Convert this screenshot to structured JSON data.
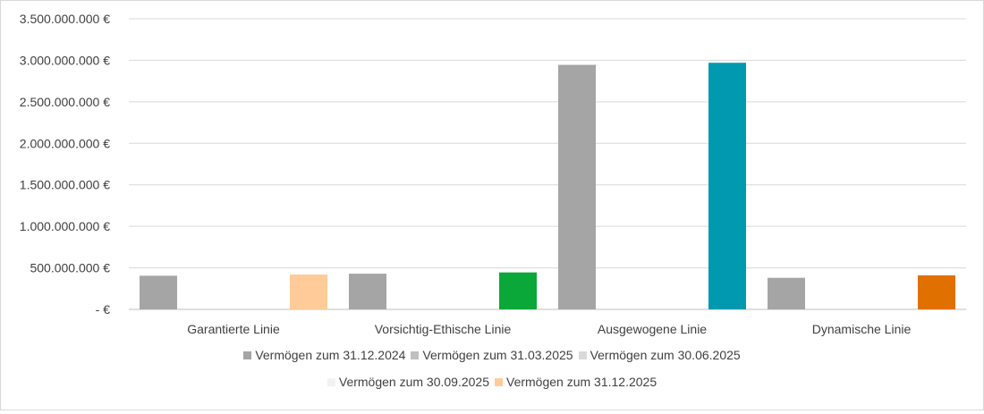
{
  "chart_data": {
    "type": "bar",
    "categories": [
      "Garantierte Linie",
      "Vorsichtig-Ethische Linie",
      "Ausgewogene Linie",
      "Dynamische Linie"
    ],
    "ylim": [
      0,
      3500000000
    ],
    "y_ticks": [
      0,
      500000000,
      1000000000,
      1500000000,
      2000000000,
      2500000000,
      3000000000,
      3500000000
    ],
    "y_tick_labels": [
      "-  €",
      "500.000.000 €",
      "1.000.000.000 €",
      "1.500.000.000 €",
      "2.000.000.000 €",
      "2.500.000.000 €",
      "3.000.000.000 €",
      "3.500.000.000 €"
    ],
    "grid": true,
    "legend_position": "bottom",
    "series": [
      {
        "name": "Vermögen zum 31.12.2024",
        "values": [
          405000000,
          430000000,
          2945000000,
          380000000
        ],
        "colors": [
          "#a5a5a5",
          "#a5a5a5",
          "#a5a5a5",
          "#a5a5a5"
        ],
        "legend_color": "#a5a5a5"
      },
      {
        "name": "Vermögen zum 31.03.2025",
        "values": [
          0,
          0,
          0,
          0
        ],
        "colors": [
          "#bfbfbf",
          "#bfbfbf",
          "#bfbfbf",
          "#bfbfbf"
        ],
        "legend_color": "#bfbfbf"
      },
      {
        "name": "Vermögen zum 30.06.2025",
        "values": [
          0,
          0,
          0,
          0
        ],
        "colors": [
          "#d9d9d9",
          "#d9d9d9",
          "#d9d9d9",
          "#d9d9d9"
        ],
        "legend_color": "#d9d9d9"
      },
      {
        "name": "Vermögen zum 30.09.2025",
        "values": [
          0,
          0,
          0,
          0
        ],
        "colors": [
          "#f2f2f2",
          "#f2f2f2",
          "#f2f2f2",
          "#f2f2f2"
        ],
        "legend_color": "#f2f2f2"
      },
      {
        "name": "Vermögen zum 31.12.2025",
        "values": [
          420000000,
          445000000,
          2970000000,
          410000000
        ],
        "colors": [
          "#ffcc99",
          "#0aa838",
          "#0099b0",
          "#e07000"
        ],
        "legend_color": "#ffcc99"
      }
    ]
  }
}
